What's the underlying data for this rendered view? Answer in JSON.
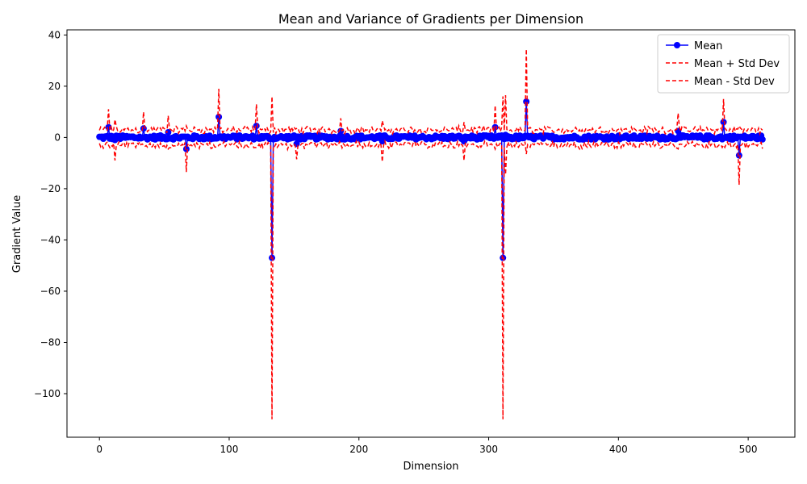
{
  "chart_data": {
    "type": "line",
    "title": "Mean and Variance of Gradients per Dimension",
    "xlabel": "Dimension",
    "ylabel": "Gradient Value",
    "xlim": [
      -25,
      536
    ],
    "ylim": [
      -117,
      42
    ],
    "xticks": [
      0,
      100,
      200,
      300,
      400,
      500
    ],
    "yticks": [
      40,
      20,
      0,
      -20,
      -40,
      -60,
      -80,
      -100
    ],
    "ytick_labels": [
      "40",
      "20",
      "0",
      "−20",
      "−40",
      "−60",
      "−80",
      "−100"
    ],
    "grid": false,
    "legend_position": "top-right",
    "n_dimensions": 512,
    "series": [
      {
        "name": "Mean",
        "style": "solid line with circle markers",
        "color": "#0000ff"
      },
      {
        "name": "Mean + Std Dev",
        "style": "dashed",
        "color": "#ff0000"
      },
      {
        "name": "Mean - Std Dev",
        "style": "dashed",
        "color": "#ff0000"
      }
    ],
    "baseline": {
      "mean_noise": 0.8,
      "std_typical": 2.8
    },
    "notable_points": [
      {
        "x": 7,
        "mean": 4.0,
        "std": 7.0
      },
      {
        "x": 12,
        "mean": -1.0,
        "std": 8.0
      },
      {
        "x": 34,
        "mean": 3.5,
        "std": 6.5
      },
      {
        "x": 53,
        "mean": 2.0,
        "std": 6.5
      },
      {
        "x": 67,
        "mean": -4.5,
        "std": 9.0
      },
      {
        "x": 92,
        "mean": 8.0,
        "std": 11.0
      },
      {
        "x": 121,
        "mean": 4.5,
        "std": 8.5
      },
      {
        "x": 133,
        "mean": -47,
        "std": 63
      },
      {
        "x": 152,
        "mean": -2.5,
        "std": 6.0
      },
      {
        "x": 186,
        "mean": 2.5,
        "std": 5.0
      },
      {
        "x": 218,
        "mean": -1.5,
        "std": 8.0
      },
      {
        "x": 281,
        "mean": -1.5,
        "std": 7.5
      },
      {
        "x": 305,
        "mean": 4.0,
        "std": 8.5
      },
      {
        "x": 311,
        "mean": -47,
        "std": 63
      },
      {
        "x": 313,
        "mean": 1.0,
        "std": 15.5
      },
      {
        "x": 329,
        "mean": 14.0,
        "std": 20.5
      },
      {
        "x": 446,
        "mean": 2.5,
        "std": 7.0
      },
      {
        "x": 481,
        "mean": 6.0,
        "std": 9.0
      },
      {
        "x": 493,
        "mean": -7.0,
        "std": 11.5
      }
    ]
  }
}
